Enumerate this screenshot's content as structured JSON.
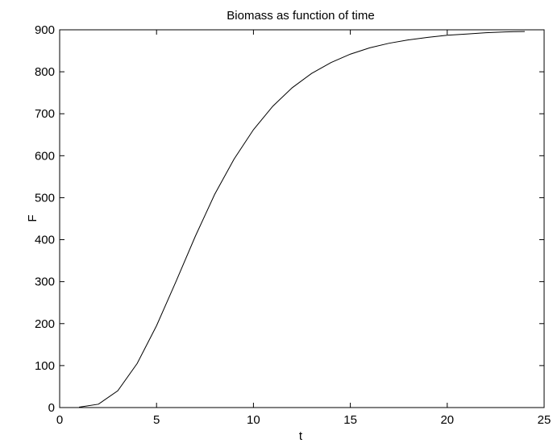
{
  "chart_data": {
    "type": "line",
    "title": "Biomass as function of time",
    "xlabel": "t",
    "ylabel": "F",
    "xlim": [
      0,
      25
    ],
    "ylim": [
      0,
      900
    ],
    "xticks": [
      0,
      5,
      10,
      15,
      20,
      25
    ],
    "yticks": [
      0,
      100,
      200,
      300,
      400,
      500,
      600,
      700,
      800,
      900
    ],
    "grid": false,
    "line_color": "#000000",
    "series": [
      {
        "x": [
          1,
          2,
          3,
          4,
          5,
          6,
          7,
          8,
          9,
          10,
          11,
          12,
          13,
          14,
          15,
          16,
          17,
          18,
          19,
          20,
          21,
          22,
          23,
          24
        ],
        "values": [
          1,
          8,
          40,
          105,
          195,
          300,
          408,
          508,
          592,
          662,
          718,
          762,
          796,
          822,
          842,
          857,
          868,
          876,
          882,
          887,
          890,
          893,
          895,
          896
        ]
      }
    ]
  }
}
